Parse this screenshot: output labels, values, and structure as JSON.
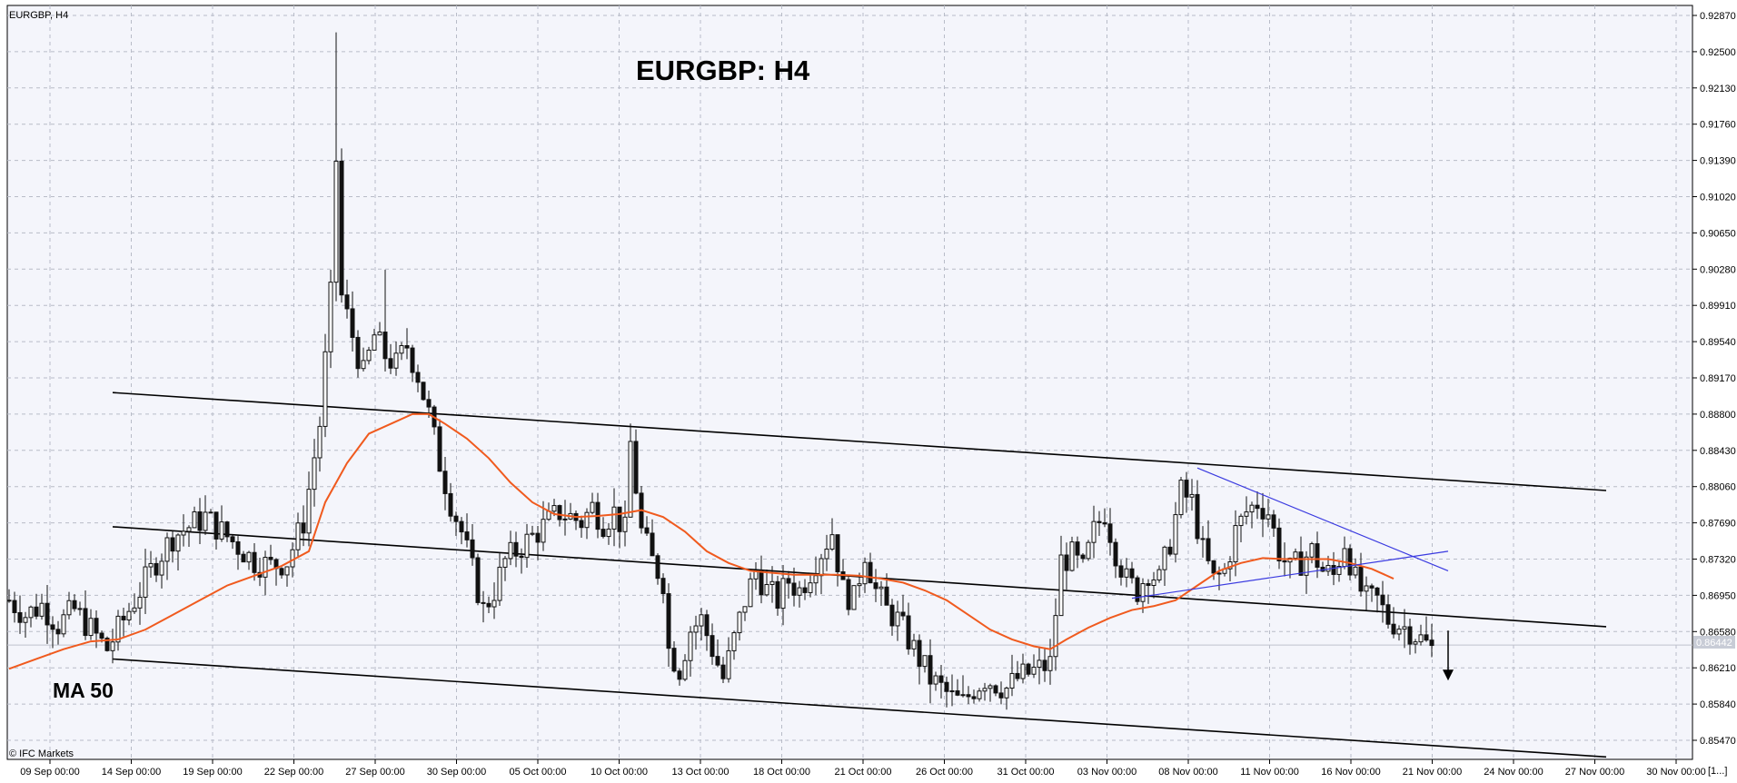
{
  "chart_data": {
    "type": "candlestick",
    "symbol_label": "EURGBP, H4",
    "title": "EURGBP: H4",
    "ma_label": "MA 50",
    "copyright": "© IFC Markets",
    "current_price_label": "0.86442",
    "current_price": 0.86442,
    "corner_label": "[1...]",
    "ylim": [
      0.853,
      0.9287
    ],
    "y_ticks": [
      "0.92870",
      "0.92500",
      "0.92130",
      "0.91760",
      "0.91390",
      "0.91020",
      "0.90650",
      "0.90280",
      "0.89910",
      "0.89540",
      "0.89170",
      "0.88800",
      "0.88430",
      "0.88060",
      "0.87690",
      "0.87320",
      "0.86950",
      "0.86580",
      "0.86210",
      "0.85840",
      "0.85470"
    ],
    "x_ticks": [
      "09 Sep 00:00",
      "14 Sep 00:00",
      "19 Sep 00:00",
      "22 Sep 00:00",
      "27 Sep 00:00",
      "30 Sep 00:00",
      "05 Oct 00:00",
      "10 Oct 00:00",
      "13 Oct 00:00",
      "18 Oct 00:00",
      "21 Oct 00:00",
      "26 Oct 00:00",
      "31 Oct 00:00",
      "03 Nov 00:00",
      "08 Nov 00:00",
      "11 Nov 00:00",
      "16 Nov 00:00",
      "21 Nov 00:00",
      "24 Nov 00:00",
      "27 Nov 00:00",
      "30 Nov 00:00"
    ],
    "candles_close_path": [
      [
        0,
        0.869
      ],
      [
        3,
        0.8675
      ],
      [
        6,
        0.8685
      ],
      [
        9,
        0.8665
      ],
      [
        12,
        0.868
      ],
      [
        15,
        0.866
      ],
      [
        18,
        0.864
      ],
      [
        21,
        0.867
      ],
      [
        24,
        0.87
      ],
      [
        27,
        0.873
      ],
      [
        30,
        0.8755
      ],
      [
        33,
        0.8765
      ],
      [
        36,
        0.8775
      ],
      [
        39,
        0.876
      ],
      [
        42,
        0.8745
      ],
      [
        45,
        0.873
      ],
      [
        48,
        0.8725
      ],
      [
        51,
        0.873
      ],
      [
        54,
        0.877
      ],
      [
        57,
        0.887
      ],
      [
        59,
        0.9
      ],
      [
        60,
        0.914
      ],
      [
        61,
        0.9
      ],
      [
        63,
        0.896
      ],
      [
        65,
        0.892
      ],
      [
        67,
        0.896
      ],
      [
        69,
        0.894
      ],
      [
        71,
        0.893
      ],
      [
        73,
        0.895
      ],
      [
        75,
        0.892
      ],
      [
        77,
        0.888
      ],
      [
        79,
        0.883
      ],
      [
        81,
        0.879
      ],
      [
        83,
        0.876
      ],
      [
        85,
        0.872
      ],
      [
        87,
        0.868
      ],
      [
        89,
        0.87
      ],
      [
        91,
        0.873
      ],
      [
        93,
        0.874
      ],
      [
        95,
        0.875
      ],
      [
        97,
        0.876
      ],
      [
        99,
        0.877
      ],
      [
        101,
        0.878
      ],
      [
        103,
        0.8775
      ],
      [
        105,
        0.877
      ],
      [
        107,
        0.8785
      ],
      [
        109,
        0.877
      ],
      [
        111,
        0.878
      ],
      [
        113,
        0.876
      ],
      [
        114,
        0.885
      ],
      [
        116,
        0.876
      ],
      [
        118,
        0.873
      ],
      [
        120,
        0.871
      ],
      [
        121,
        0.864
      ],
      [
        123,
        0.862
      ],
      [
        125,
        0.866
      ],
      [
        127,
        0.867
      ],
      [
        129,
        0.864
      ],
      [
        131,
        0.861
      ],
      [
        133,
        0.865
      ],
      [
        135,
        0.869
      ],
      [
        137,
        0.872
      ],
      [
        139,
        0.87
      ],
      [
        141,
        0.869
      ],
      [
        143,
        0.871
      ],
      [
        145,
        0.87
      ],
      [
        147,
        0.872
      ],
      [
        149,
        0.874
      ],
      [
        151,
        0.876
      ],
      [
        153,
        0.87
      ],
      [
        155,
        0.869
      ],
      [
        157,
        0.874
      ],
      [
        159,
        0.87
      ],
      [
        161,
        0.868
      ],
      [
        163,
        0.867
      ],
      [
        165,
        0.865
      ],
      [
        167,
        0.863
      ],
      [
        169,
        0.861
      ],
      [
        171,
        0.86
      ],
      [
        173,
        0.859
      ],
      [
        175,
        0.8585
      ],
      [
        177,
        0.86
      ],
      [
        179,
        0.861
      ],
      [
        181,
        0.8605
      ],
      [
        183,
        0.86
      ],
      [
        185,
        0.861
      ],
      [
        187,
        0.8615
      ],
      [
        189,
        0.862
      ],
      [
        191,
        0.8625
      ],
      [
        193,
        0.873
      ],
      [
        195,
        0.8735
      ],
      [
        197,
        0.872
      ],
      [
        199,
        0.876
      ],
      [
        201,
        0.878
      ],
      [
        203,
        0.874
      ],
      [
        205,
        0.871
      ],
      [
        207,
        0.87
      ],
      [
        209,
        0.872
      ],
      [
        211,
        0.871
      ],
      [
        213,
        0.875
      ],
      [
        215,
        0.88
      ],
      [
        217,
        0.879
      ],
      [
        219,
        0.874
      ],
      [
        221,
        0.871
      ],
      [
        223,
        0.872
      ],
      [
        225,
        0.876
      ],
      [
        227,
        0.878
      ],
      [
        229,
        0.879
      ],
      [
        231,
        0.878
      ],
      [
        233,
        0.874
      ],
      [
        235,
        0.872
      ],
      [
        237,
        0.873
      ],
      [
        239,
        0.874
      ],
      [
        241,
        0.872
      ],
      [
        243,
        0.8715
      ],
      [
        245,
        0.875
      ],
      [
        247,
        0.871
      ],
      [
        249,
        0.869
      ],
      [
        251,
        0.869
      ],
      [
        253,
        0.867
      ],
      [
        255,
        0.8665
      ],
      [
        257,
        0.866
      ],
      [
        259,
        0.865
      ],
      [
        261,
        0.864
      ]
    ],
    "ma50": [
      [
        0,
        0.862
      ],
      [
        5,
        0.863
      ],
      [
        10,
        0.864
      ],
      [
        15,
        0.8648
      ],
      [
        20,
        0.865
      ],
      [
        25,
        0.866
      ],
      [
        30,
        0.8675
      ],
      [
        35,
        0.869
      ],
      [
        40,
        0.8705
      ],
      [
        45,
        0.8715
      ],
      [
        50,
        0.8725
      ],
      [
        55,
        0.874
      ],
      [
        58,
        0.879
      ],
      [
        62,
        0.883
      ],
      [
        66,
        0.886
      ],
      [
        70,
        0.887
      ],
      [
        74,
        0.888
      ],
      [
        77,
        0.888
      ],
      [
        80,
        0.887
      ],
      [
        84,
        0.8855
      ],
      [
        88,
        0.8835
      ],
      [
        92,
        0.881
      ],
      [
        96,
        0.879
      ],
      [
        100,
        0.8778
      ],
      [
        104,
        0.8775
      ],
      [
        108,
        0.8776
      ],
      [
        112,
        0.8778
      ],
      [
        116,
        0.8782
      ],
      [
        120,
        0.8775
      ],
      [
        124,
        0.876
      ],
      [
        128,
        0.874
      ],
      [
        132,
        0.8728
      ],
      [
        136,
        0.872
      ],
      [
        140,
        0.8718
      ],
      [
        144,
        0.8716
      ],
      [
        148,
        0.8716
      ],
      [
        152,
        0.8716
      ],
      [
        156,
        0.8715
      ],
      [
        160,
        0.8712
      ],
      [
        164,
        0.8708
      ],
      [
        168,
        0.87
      ],
      [
        172,
        0.869
      ],
      [
        176,
        0.8675
      ],
      [
        180,
        0.866
      ],
      [
        184,
        0.865
      ],
      [
        188,
        0.8643
      ],
      [
        191,
        0.864
      ],
      [
        194,
        0.865
      ],
      [
        198,
        0.8662
      ],
      [
        202,
        0.8672
      ],
      [
        206,
        0.868
      ],
      [
        210,
        0.8684
      ],
      [
        214,
        0.869
      ],
      [
        218,
        0.8705
      ],
      [
        222,
        0.872
      ],
      [
        226,
        0.8728
      ],
      [
        230,
        0.8733
      ],
      [
        234,
        0.8732
      ],
      [
        238,
        0.8732
      ],
      [
        242,
        0.8732
      ],
      [
        246,
        0.8728
      ],
      [
        250,
        0.8722
      ],
      [
        254,
        0.8712
      ]
    ],
    "channel_lines": [
      {
        "from": [
          19,
          0.8902
        ],
        "to": [
          293,
          0.8802
        ]
      },
      {
        "from": [
          19,
          0.8765
        ],
        "to": [
          293,
          0.8663
        ]
      },
      {
        "from": [
          19,
          0.863
        ],
        "to": [
          293,
          0.853
        ]
      }
    ],
    "triangle_lines": [
      {
        "from": [
          218,
          0.8825
        ],
        "to": [
          264,
          0.872
        ]
      },
      {
        "from": [
          206,
          0.8692
        ],
        "to": [
          264,
          0.874
        ]
      }
    ],
    "arrow": {
      "x": 264,
      "from": 0.8659,
      "to": 0.8608
    },
    "colors": {
      "background": "#f4f5fb",
      "candle": "#111111",
      "ma": "#f05a1e",
      "channel": "#000000",
      "triangle": "#3a3ae0",
      "grid": "#b8bcc8",
      "price_line": "#bfc2cc",
      "price_tag": "#c8ccd6"
    }
  }
}
